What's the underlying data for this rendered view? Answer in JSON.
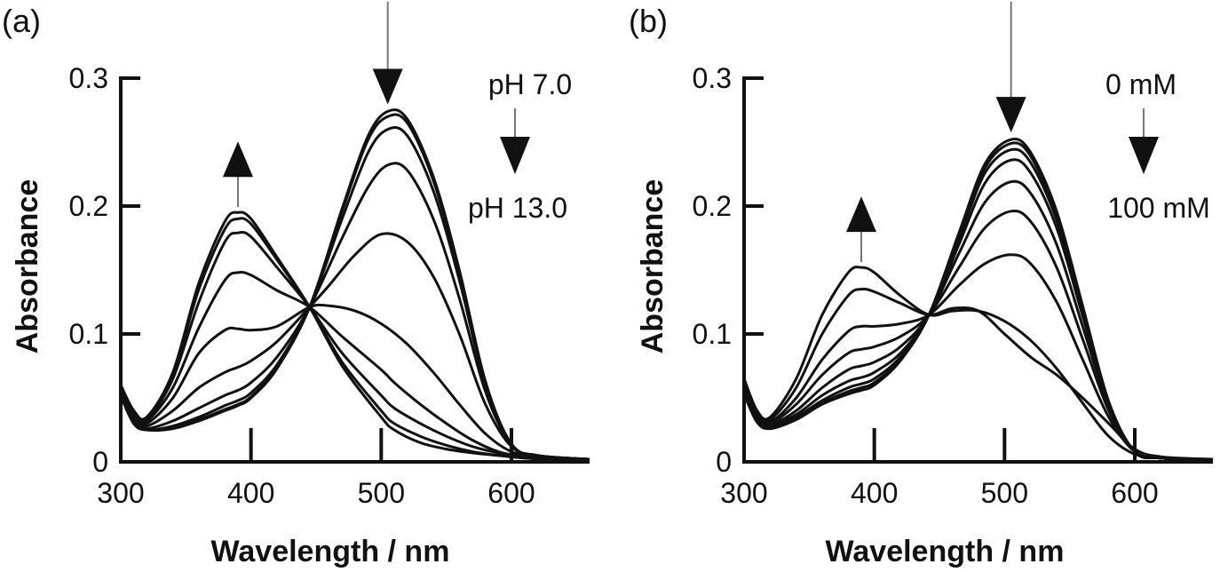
{
  "chart_data": [
    {
      "type": "line",
      "panel_label": "(a)",
      "xlabel": "Wavelength / nm",
      "ylabel": "Absorbance",
      "xlim": [
        300,
        660
      ],
      "ylim": [
        0,
        0.3
      ],
      "xticks": [
        300,
        400,
        500,
        600
      ],
      "xtick_labels": [
        "300",
        "400",
        "500",
        "600"
      ],
      "yticks": [
        0,
        0.1,
        0.2,
        0.3
      ],
      "ytick_labels": [
        "0",
        "0.1",
        "0.2",
        "0.3"
      ],
      "isosbestic_point": [
        445,
        0.121
      ],
      "annotations": {
        "start": "pH 7.0",
        "end": "pH 13.0"
      },
      "trend_arrows": [
        {
          "x": 390,
          "direction": "up"
        },
        {
          "x": 505,
          "direction": "down"
        }
      ],
      "series": [
        {
          "x": [
            300,
            310,
            320,
            340,
            360,
            380,
            390,
            400,
            420,
            445,
            470,
            500,
            510,
            530,
            550,
            570,
            590,
            610,
            630,
            660
          ],
          "y": [
            0.06,
            0.04,
            0.035,
            0.07,
            0.14,
            0.188,
            0.195,
            0.19,
            0.16,
            0.121,
            0.075,
            0.035,
            0.025,
            0.015,
            0.01,
            0.007,
            0.005,
            0.003,
            0.002,
            0.002
          ]
        },
        {
          "x": [
            300,
            310,
            320,
            340,
            360,
            380,
            390,
            400,
            420,
            445,
            470,
            500,
            510,
            530,
            550,
            570,
            590,
            610,
            630,
            660
          ],
          "y": [
            0.06,
            0.04,
            0.035,
            0.068,
            0.135,
            0.182,
            0.19,
            0.186,
            0.158,
            0.121,
            0.078,
            0.04,
            0.03,
            0.02,
            0.013,
            0.008,
            0.005,
            0.003,
            0.002,
            0.002
          ]
        },
        {
          "x": [
            300,
            310,
            320,
            340,
            360,
            380,
            390,
            400,
            420,
            445,
            470,
            500,
            510,
            530,
            550,
            570,
            590,
            610,
            630,
            660
          ],
          "y": [
            0.06,
            0.038,
            0.033,
            0.065,
            0.125,
            0.172,
            0.179,
            0.176,
            0.152,
            0.121,
            0.085,
            0.052,
            0.042,
            0.03,
            0.02,
            0.012,
            0.007,
            0.004,
            0.003,
            0.002
          ]
        },
        {
          "x": [
            300,
            310,
            320,
            340,
            360,
            380,
            390,
            400,
            420,
            445,
            470,
            500,
            510,
            530,
            550,
            570,
            590,
            610,
            630,
            660
          ],
          "y": [
            0.058,
            0.036,
            0.032,
            0.058,
            0.105,
            0.142,
            0.148,
            0.146,
            0.134,
            0.121,
            0.098,
            0.072,
            0.062,
            0.045,
            0.03,
            0.017,
            0.008,
            0.004,
            0.003,
            0.002
          ]
        },
        {
          "x": [
            300,
            310,
            320,
            340,
            360,
            380,
            390,
            400,
            420,
            445,
            460,
            480,
            500,
            520,
            540,
            560,
            580,
            600,
            620,
            660
          ],
          "y": [
            0.056,
            0.034,
            0.03,
            0.05,
            0.085,
            0.103,
            0.104,
            0.103,
            0.106,
            0.121,
            0.122,
            0.118,
            0.108,
            0.092,
            0.07,
            0.045,
            0.022,
            0.008,
            0.004,
            0.002
          ]
        },
        {
          "x": [
            300,
            310,
            320,
            340,
            360,
            380,
            390,
            400,
            420,
            445,
            460,
            480,
            500,
            520,
            540,
            560,
            580,
            600,
            620,
            660
          ],
          "y": [
            0.054,
            0.032,
            0.028,
            0.04,
            0.058,
            0.07,
            0.074,
            0.079,
            0.094,
            0.121,
            0.138,
            0.162,
            0.178,
            0.172,
            0.145,
            0.1,
            0.045,
            0.012,
            0.005,
            0.002
          ]
        },
        {
          "x": [
            300,
            310,
            320,
            340,
            360,
            380,
            390,
            400,
            420,
            445,
            470,
            490,
            505,
            520,
            540,
            560,
            580,
            600,
            620,
            660
          ],
          "y": [
            0.052,
            0.03,
            0.026,
            0.032,
            0.042,
            0.052,
            0.056,
            0.062,
            0.082,
            0.121,
            0.175,
            0.215,
            0.232,
            0.228,
            0.19,
            0.128,
            0.055,
            0.013,
            0.005,
            0.002
          ]
        },
        {
          "x": [
            300,
            310,
            320,
            340,
            360,
            380,
            390,
            400,
            420,
            445,
            470,
            490,
            505,
            520,
            540,
            560,
            580,
            600,
            620,
            660
          ],
          "y": [
            0.052,
            0.03,
            0.025,
            0.028,
            0.035,
            0.044,
            0.048,
            0.054,
            0.076,
            0.121,
            0.19,
            0.242,
            0.26,
            0.255,
            0.212,
            0.142,
            0.06,
            0.014,
            0.005,
            0.002
          ]
        },
        {
          "x": [
            300,
            310,
            320,
            340,
            360,
            380,
            390,
            400,
            420,
            445,
            470,
            490,
            505,
            520,
            540,
            560,
            580,
            600,
            620,
            660
          ],
          "y": [
            0.052,
            0.03,
            0.025,
            0.027,
            0.033,
            0.041,
            0.045,
            0.051,
            0.074,
            0.121,
            0.196,
            0.252,
            0.27,
            0.265,
            0.22,
            0.148,
            0.062,
            0.014,
            0.005,
            0.002
          ]
        },
        {
          "x": [
            300,
            310,
            320,
            340,
            360,
            380,
            390,
            400,
            420,
            445,
            470,
            490,
            505,
            520,
            540,
            560,
            580,
            600,
            620,
            660
          ],
          "y": [
            0.052,
            0.03,
            0.025,
            0.026,
            0.032,
            0.04,
            0.044,
            0.05,
            0.073,
            0.121,
            0.198,
            0.255,
            0.274,
            0.268,
            0.223,
            0.15,
            0.063,
            0.014,
            0.005,
            0.002
          ]
        }
      ]
    },
    {
      "type": "line",
      "panel_label": "(b)",
      "xlabel": "Wavelength / nm",
      "ylabel": "Absorbance",
      "xlim": [
        300,
        660
      ],
      "ylim": [
        0,
        0.3
      ],
      "xticks": [
        300,
        400,
        500,
        600
      ],
      "xtick_labels": [
        "300",
        "400",
        "500",
        "600"
      ],
      "yticks": [
        0,
        0.1,
        0.2,
        0.3
      ],
      "ytick_labels": [
        "0",
        "0.1",
        "0.2",
        "0.3"
      ],
      "isosbestic_point": [
        442,
        0.115
      ],
      "annotations": {
        "start": "0 mM",
        "end": "100 mM"
      },
      "trend_arrows": [
        {
          "x": 390,
          "direction": "up"
        },
        {
          "x": 505,
          "direction": "down"
        }
      ],
      "series": [
        {
          "x": [
            300,
            310,
            320,
            340,
            360,
            380,
            390,
            400,
            420,
            442,
            460,
            480,
            500,
            520,
            540,
            560,
            580,
            600,
            620,
            660
          ],
          "y": [
            0.065,
            0.04,
            0.035,
            0.065,
            0.115,
            0.148,
            0.152,
            0.148,
            0.13,
            0.115,
            0.118,
            0.118,
            0.11,
            0.095,
            0.073,
            0.046,
            0.02,
            0.006,
            0.003,
            0.002
          ]
        },
        {
          "x": [
            300,
            310,
            320,
            340,
            360,
            380,
            390,
            400,
            420,
            442,
            460,
            480,
            500,
            520,
            540,
            560,
            580,
            600,
            620,
            660
          ],
          "y": [
            0.062,
            0.038,
            0.033,
            0.058,
            0.1,
            0.13,
            0.135,
            0.133,
            0.124,
            0.115,
            0.12,
            0.118,
            0.1,
            0.082,
            0.068,
            0.05,
            0.03,
            0.01,
            0.004,
            0.002
          ]
        },
        {
          "x": [
            300,
            310,
            320,
            340,
            360,
            380,
            390,
            400,
            420,
            442,
            465,
            485,
            505,
            520,
            540,
            560,
            580,
            600,
            620,
            660
          ],
          "y": [
            0.06,
            0.036,
            0.031,
            0.05,
            0.08,
            0.102,
            0.106,
            0.106,
            0.108,
            0.115,
            0.138,
            0.155,
            0.162,
            0.155,
            0.125,
            0.08,
            0.035,
            0.008,
            0.003,
            0.002
          ]
        },
        {
          "x": [
            300,
            310,
            320,
            340,
            360,
            380,
            390,
            400,
            420,
            442,
            465,
            485,
            505,
            520,
            540,
            560,
            580,
            600,
            620,
            660
          ],
          "y": [
            0.058,
            0.034,
            0.03,
            0.045,
            0.068,
            0.085,
            0.088,
            0.09,
            0.098,
            0.115,
            0.152,
            0.183,
            0.196,
            0.188,
            0.152,
            0.096,
            0.04,
            0.008,
            0.003,
            0.002
          ]
        },
        {
          "x": [
            300,
            310,
            320,
            340,
            360,
            380,
            390,
            400,
            420,
            442,
            465,
            485,
            505,
            520,
            540,
            560,
            580,
            600,
            620,
            660
          ],
          "y": [
            0.056,
            0.033,
            0.029,
            0.04,
            0.058,
            0.072,
            0.075,
            0.078,
            0.09,
            0.115,
            0.163,
            0.203,
            0.219,
            0.21,
            0.17,
            0.106,
            0.043,
            0.008,
            0.003,
            0.002
          ]
        },
        {
          "x": [
            300,
            310,
            320,
            340,
            360,
            380,
            390,
            400,
            420,
            442,
            465,
            485,
            505,
            520,
            540,
            560,
            580,
            600,
            620,
            660
          ],
          "y": [
            0.055,
            0.032,
            0.028,
            0.037,
            0.052,
            0.063,
            0.066,
            0.07,
            0.085,
            0.115,
            0.17,
            0.218,
            0.236,
            0.226,
            0.183,
            0.114,
            0.045,
            0.008,
            0.003,
            0.002
          ]
        },
        {
          "x": [
            300,
            310,
            320,
            340,
            360,
            380,
            390,
            400,
            420,
            442,
            465,
            485,
            505,
            520,
            540,
            560,
            580,
            600,
            620,
            660
          ],
          "y": [
            0.054,
            0.032,
            0.027,
            0.035,
            0.048,
            0.058,
            0.061,
            0.065,
            0.082,
            0.115,
            0.174,
            0.226,
            0.244,
            0.234,
            0.189,
            0.118,
            0.046,
            0.008,
            0.003,
            0.002
          ]
        },
        {
          "x": [
            300,
            310,
            320,
            340,
            360,
            380,
            390,
            400,
            420,
            442,
            465,
            485,
            505,
            520,
            540,
            560,
            580,
            600,
            620,
            660
          ],
          "y": [
            0.054,
            0.031,
            0.027,
            0.034,
            0.046,
            0.055,
            0.058,
            0.062,
            0.08,
            0.115,
            0.177,
            0.23,
            0.249,
            0.239,
            0.193,
            0.12,
            0.047,
            0.008,
            0.003,
            0.002
          ]
        },
        {
          "x": [
            300,
            310,
            320,
            340,
            360,
            380,
            390,
            400,
            420,
            442,
            465,
            485,
            505,
            520,
            540,
            560,
            580,
            600,
            620,
            660
          ],
          "y": [
            0.053,
            0.031,
            0.026,
            0.033,
            0.045,
            0.053,
            0.056,
            0.06,
            0.079,
            0.115,
            0.179,
            0.233,
            0.252,
            0.242,
            0.196,
            0.122,
            0.047,
            0.008,
            0.003,
            0.002
          ]
        }
      ]
    }
  ]
}
